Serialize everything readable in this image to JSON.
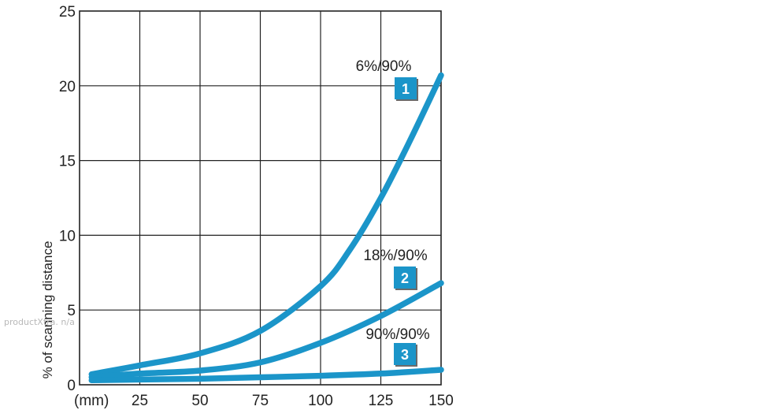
{
  "chart_data": {
    "type": "line",
    "title": "",
    "xlabel": "",
    "x_unit_label": "(mm)",
    "ylabel": "% of scanning distance",
    "xlim": [
      0,
      150
    ],
    "ylim": [
      0,
      25
    ],
    "x_ticks": [
      25,
      50,
      75,
      100,
      125,
      150
    ],
    "y_ticks": [
      0,
      5,
      10,
      15,
      20,
      25
    ],
    "x_tick_labels": [
      "25",
      "50",
      "75",
      "100",
      "125",
      "150"
    ],
    "y_tick_labels": [
      "0",
      "5",
      "10",
      "15",
      "20",
      "25"
    ],
    "grid": true,
    "series": [
      {
        "name": "6%/90%",
        "badge": "1",
        "x": [
          5,
          25,
          50,
          75,
          100,
          112,
          125,
          137,
          150
        ],
        "y": [
          0.7,
          1.3,
          2.1,
          3.6,
          6.6,
          9.0,
          12.5,
          16.3,
          20.7
        ]
      },
      {
        "name": "18%/90%",
        "badge": "2",
        "x": [
          5,
          25,
          50,
          75,
          100,
          125,
          150
        ],
        "y": [
          0.5,
          0.75,
          0.95,
          1.5,
          2.8,
          4.6,
          6.8
        ]
      },
      {
        "name": "90%/90%",
        "badge": "3",
        "x": [
          5,
          25,
          50,
          75,
          100,
          125,
          150
        ],
        "y": [
          0.3,
          0.35,
          0.4,
          0.5,
          0.6,
          0.75,
          1.0
        ]
      }
    ],
    "line_color": "#1b95c9",
    "badge_color": "#1b95c9"
  },
  "watermark": "productXtra. n/a"
}
